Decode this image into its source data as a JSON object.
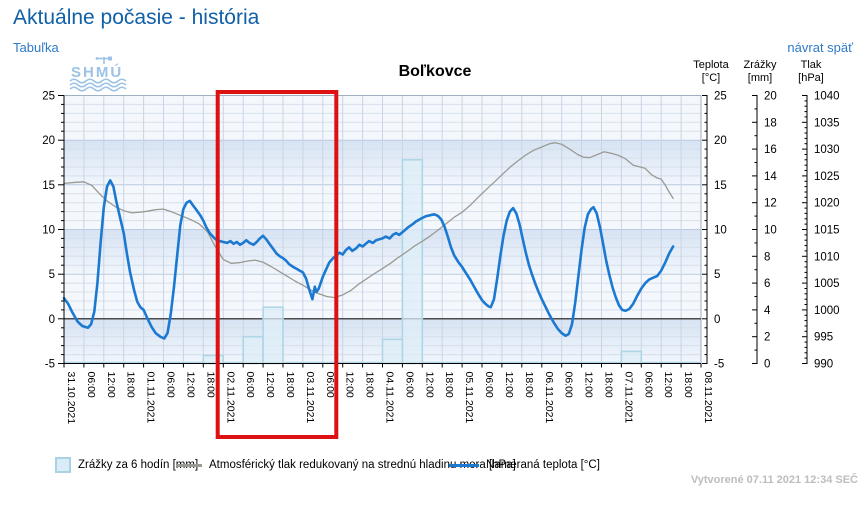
{
  "page": {
    "title": "Aktuálne počasie - história",
    "table_link": "Tabuľka",
    "back_link": "návrat späť",
    "created": "Vytvorené 07.11 2021 12:34 SEČ"
  },
  "logo": {
    "text": "SHMÚ"
  },
  "chart_data": {
    "type": "line",
    "title": "Boľkovce",
    "x_axis": {
      "tick_hours": 6,
      "tick_labels": [
        "31.10.2021",
        "06:00",
        "12:00",
        "18:00",
        "01.11.2021",
        "06:00",
        "12:00",
        "18:00",
        "02.11.2021",
        "06:00",
        "12:00",
        "18:00",
        "03.11.2021",
        "06:00",
        "12:00",
        "18:00",
        "04.11.2021",
        "06:00",
        "12:00",
        "18:00",
        "05.11.2021",
        "06:00",
        "12:00",
        "18:00",
        "06.11.2021",
        "06:00",
        "12:00",
        "18:00",
        "07.11.2021",
        "06:00",
        "12:00",
        "18:00",
        "08.11.2021"
      ]
    },
    "axes": {
      "teplota": {
        "label": "Teplota",
        "unit": "[°C]",
        "min": -5,
        "max": 25,
        "minor_step": 1,
        "label_step": 5,
        "tick_labels": [
          -5,
          0,
          5,
          10,
          15,
          20,
          25
        ]
      },
      "zrazky": {
        "label": "Zrážky",
        "unit": "[mm]",
        "min": 0,
        "max": 20,
        "minor_step": 1,
        "label_step": 2,
        "tick_labels": [
          0,
          2,
          4,
          6,
          8,
          10,
          12,
          14,
          16,
          18,
          20
        ]
      },
      "tlak": {
        "label": "Tlak",
        "unit": "[hPa]",
        "min": 990,
        "max": 1040,
        "minor_step": 1,
        "label_step": 5,
        "tick_labels": [
          990,
          995,
          1000,
          1005,
          1010,
          1015,
          1020,
          1025,
          1030,
          1035,
          1040
        ]
      }
    },
    "series": {
      "teplota": {
        "name": "Nameraná teplota [°C]",
        "color": "#1b79d2",
        "points": [
          [
            0,
            2.3
          ],
          [
            0.05,
            1.7
          ],
          [
            0.1,
            0.8
          ],
          [
            0.17,
            -0.3
          ],
          [
            0.23,
            -0.8
          ],
          [
            0.3,
            -1.0
          ],
          [
            0.34,
            -0.6
          ],
          [
            0.38,
            0.8
          ],
          [
            0.42,
            4.0
          ],
          [
            0.46,
            8.5
          ],
          [
            0.5,
            12.5
          ],
          [
            0.54,
            14.8
          ],
          [
            0.58,
            15.5
          ],
          [
            0.62,
            14.8
          ],
          [
            0.66,
            13.0
          ],
          [
            0.7,
            11.5
          ],
          [
            0.75,
            9.6
          ],
          [
            0.79,
            7.3
          ],
          [
            0.83,
            5.2
          ],
          [
            0.88,
            3.2
          ],
          [
            0.92,
            1.9
          ],
          [
            0.96,
            1.3
          ],
          [
            1.0,
            1.0
          ],
          [
            1.05,
            0.0
          ],
          [
            1.1,
            -0.9
          ],
          [
            1.15,
            -1.6
          ],
          [
            1.21,
            -2.0
          ],
          [
            1.26,
            -2.2
          ],
          [
            1.3,
            -1.6
          ],
          [
            1.34,
            0.5
          ],
          [
            1.38,
            3.5
          ],
          [
            1.42,
            7.0
          ],
          [
            1.46,
            10.5
          ],
          [
            1.5,
            12.3
          ],
          [
            1.54,
            13.0
          ],
          [
            1.58,
            13.2
          ],
          [
            1.62,
            12.7
          ],
          [
            1.67,
            12.1
          ],
          [
            1.71,
            11.6
          ],
          [
            1.75,
            11.0
          ],
          [
            1.79,
            10.2
          ],
          [
            1.83,
            9.6
          ],
          [
            1.88,
            9.1
          ],
          [
            1.92,
            8.8
          ],
          [
            1.96,
            8.7
          ],
          [
            2.0,
            8.6
          ],
          [
            2.05,
            8.5
          ],
          [
            2.09,
            8.7
          ],
          [
            2.13,
            8.4
          ],
          [
            2.17,
            8.6
          ],
          [
            2.21,
            8.3
          ],
          [
            2.25,
            8.5
          ],
          [
            2.29,
            8.8
          ],
          [
            2.33,
            8.5
          ],
          [
            2.38,
            8.3
          ],
          [
            2.42,
            8.6
          ],
          [
            2.46,
            9.0
          ],
          [
            2.5,
            9.3
          ],
          [
            2.54,
            8.9
          ],
          [
            2.58,
            8.4
          ],
          [
            2.63,
            7.8
          ],
          [
            2.67,
            7.3
          ],
          [
            2.71,
            7.0
          ],
          [
            2.75,
            6.8
          ],
          [
            2.79,
            6.5
          ],
          [
            2.83,
            6.1
          ],
          [
            2.88,
            5.8
          ],
          [
            2.92,
            5.6
          ],
          [
            2.96,
            5.4
          ],
          [
            3.0,
            5.2
          ],
          [
            3.04,
            4.5
          ],
          [
            3.08,
            3.3
          ],
          [
            3.12,
            2.2
          ],
          [
            3.15,
            3.6
          ],
          [
            3.17,
            3.0
          ],
          [
            3.2,
            3.4
          ],
          [
            3.25,
            4.7
          ],
          [
            3.29,
            5.5
          ],
          [
            3.33,
            6.3
          ],
          [
            3.38,
            6.8
          ],
          [
            3.42,
            7.1
          ],
          [
            3.46,
            7.4
          ],
          [
            3.5,
            7.2
          ],
          [
            3.54,
            7.7
          ],
          [
            3.58,
            8.0
          ],
          [
            3.62,
            7.6
          ],
          [
            3.67,
            7.9
          ],
          [
            3.71,
            8.3
          ],
          [
            3.75,
            8.1
          ],
          [
            3.79,
            8.4
          ],
          [
            3.83,
            8.7
          ],
          [
            3.88,
            8.5
          ],
          [
            3.92,
            8.8
          ],
          [
            3.96,
            8.9
          ],
          [
            4.0,
            9.0
          ],
          [
            4.04,
            9.2
          ],
          [
            4.09,
            9.0
          ],
          [
            4.13,
            9.4
          ],
          [
            4.17,
            9.6
          ],
          [
            4.21,
            9.4
          ],
          [
            4.25,
            9.7
          ],
          [
            4.29,
            10.0
          ],
          [
            4.33,
            10.3
          ],
          [
            4.38,
            10.6
          ],
          [
            4.42,
            10.9
          ],
          [
            4.46,
            11.1
          ],
          [
            4.5,
            11.3
          ],
          [
            4.55,
            11.5
          ],
          [
            4.6,
            11.6
          ],
          [
            4.65,
            11.7
          ],
          [
            4.7,
            11.5
          ],
          [
            4.74,
            11.1
          ],
          [
            4.78,
            10.3
          ],
          [
            4.82,
            9.2
          ],
          [
            4.86,
            8.0
          ],
          [
            4.9,
            7.1
          ],
          [
            4.95,
            6.4
          ],
          [
            5.0,
            5.8
          ],
          [
            5.05,
            5.1
          ],
          [
            5.1,
            4.4
          ],
          [
            5.15,
            3.6
          ],
          [
            5.2,
            2.8
          ],
          [
            5.25,
            2.1
          ],
          [
            5.29,
            1.7
          ],
          [
            5.33,
            1.4
          ],
          [
            5.36,
            1.3
          ],
          [
            5.4,
            2.2
          ],
          [
            5.44,
            4.5
          ],
          [
            5.48,
            7.0
          ],
          [
            5.52,
            9.3
          ],
          [
            5.56,
            11.0
          ],
          [
            5.6,
            12.0
          ],
          [
            5.64,
            12.4
          ],
          [
            5.68,
            11.8
          ],
          [
            5.72,
            10.6
          ],
          [
            5.76,
            9.0
          ],
          [
            5.8,
            7.4
          ],
          [
            5.84,
            6.0
          ],
          [
            5.88,
            4.9
          ],
          [
            5.92,
            3.9
          ],
          [
            5.96,
            3.0
          ],
          [
            6.0,
            2.2
          ],
          [
            6.05,
            1.3
          ],
          [
            6.1,
            0.4
          ],
          [
            6.15,
            -0.4
          ],
          [
            6.2,
            -1.1
          ],
          [
            6.25,
            -1.6
          ],
          [
            6.3,
            -1.9
          ],
          [
            6.34,
            -1.7
          ],
          [
            6.38,
            -0.6
          ],
          [
            6.42,
            1.8
          ],
          [
            6.46,
            4.8
          ],
          [
            6.5,
            7.8
          ],
          [
            6.54,
            10.2
          ],
          [
            6.58,
            11.7
          ],
          [
            6.62,
            12.3
          ],
          [
            6.65,
            12.5
          ],
          [
            6.69,
            11.8
          ],
          [
            6.73,
            10.3
          ],
          [
            6.77,
            8.4
          ],
          [
            6.81,
            6.5
          ],
          [
            6.85,
            4.9
          ],
          [
            6.89,
            3.5
          ],
          [
            6.93,
            2.4
          ],
          [
            6.97,
            1.5
          ],
          [
            7.01,
            1.0
          ],
          [
            7.05,
            0.9
          ],
          [
            7.1,
            1.1
          ],
          [
            7.15,
            1.7
          ],
          [
            7.2,
            2.6
          ],
          [
            7.25,
            3.4
          ],
          [
            7.3,
            4.0
          ],
          [
            7.35,
            4.4
          ],
          [
            7.4,
            4.6
          ],
          [
            7.45,
            4.8
          ],
          [
            7.5,
            5.4
          ],
          [
            7.55,
            6.3
          ],
          [
            7.6,
            7.3
          ],
          [
            7.65,
            8.1
          ]
        ]
      },
      "tlak": {
        "name": "Atmosférický tlak redukovaný na strednú hladinu mora [hPa]",
        "color": "#9a9a94",
        "points": [
          [
            0,
            1023.6
          ],
          [
            0.15,
            1023.8
          ],
          [
            0.25,
            1023.9
          ],
          [
            0.35,
            1023.2
          ],
          [
            0.45,
            1021.6
          ],
          [
            0.55,
            1020.2
          ],
          [
            0.65,
            1019.2
          ],
          [
            0.75,
            1018.5
          ],
          [
            0.85,
            1018.1
          ],
          [
            1.0,
            1018.3
          ],
          [
            1.15,
            1018.7
          ],
          [
            1.25,
            1018.8
          ],
          [
            1.35,
            1018.3
          ],
          [
            1.5,
            1017.4
          ],
          [
            1.6,
            1016.8
          ],
          [
            1.7,
            1016.0
          ],
          [
            1.8,
            1014.6
          ],
          [
            1.9,
            1011.8
          ],
          [
            2.0,
            1009.4
          ],
          [
            2.1,
            1008.7
          ],
          [
            2.2,
            1008.8
          ],
          [
            2.3,
            1009.1
          ],
          [
            2.4,
            1009.3
          ],
          [
            2.5,
            1008.9
          ],
          [
            2.6,
            1008.1
          ],
          [
            2.7,
            1007.2
          ],
          [
            2.8,
            1006.3
          ],
          [
            2.9,
            1005.4
          ],
          [
            3.0,
            1004.6
          ],
          [
            3.1,
            1003.7
          ],
          [
            3.2,
            1003.0
          ],
          [
            3.3,
            1002.5
          ],
          [
            3.4,
            1002.3
          ],
          [
            3.5,
            1002.8
          ],
          [
            3.6,
            1003.6
          ],
          [
            3.7,
            1004.8
          ],
          [
            3.8,
            1005.8
          ],
          [
            3.9,
            1006.8
          ],
          [
            4.0,
            1007.7
          ],
          [
            4.1,
            1008.7
          ],
          [
            4.2,
            1009.8
          ],
          [
            4.3,
            1010.8
          ],
          [
            4.4,
            1011.9
          ],
          [
            4.5,
            1012.8
          ],
          [
            4.6,
            1013.8
          ],
          [
            4.7,
            1014.9
          ],
          [
            4.8,
            1016.1
          ],
          [
            4.9,
            1017.3
          ],
          [
            5.0,
            1018.2
          ],
          [
            5.1,
            1019.5
          ],
          [
            5.2,
            1021.0
          ],
          [
            5.3,
            1022.4
          ],
          [
            5.4,
            1023.8
          ],
          [
            5.5,
            1025.2
          ],
          [
            5.6,
            1026.6
          ],
          [
            5.7,
            1027.8
          ],
          [
            5.8,
            1028.9
          ],
          [
            5.9,
            1029.8
          ],
          [
            6.0,
            1030.4
          ],
          [
            6.1,
            1031.0
          ],
          [
            6.17,
            1031.2
          ],
          [
            6.25,
            1030.9
          ],
          [
            6.35,
            1030.0
          ],
          [
            6.45,
            1029.0
          ],
          [
            6.52,
            1028.5
          ],
          [
            6.6,
            1028.4
          ],
          [
            6.7,
            1029.0
          ],
          [
            6.78,
            1029.5
          ],
          [
            6.85,
            1029.3
          ],
          [
            6.95,
            1028.9
          ],
          [
            7.05,
            1028.2
          ],
          [
            7.15,
            1027.0
          ],
          [
            7.25,
            1026.6
          ],
          [
            7.3,
            1026.4
          ],
          [
            7.38,
            1025.2
          ],
          [
            7.45,
            1024.6
          ],
          [
            7.5,
            1024.4
          ],
          [
            7.55,
            1023.3
          ],
          [
            7.6,
            1022.0
          ],
          [
            7.65,
            1020.8
          ]
        ]
      },
      "zrazky": {
        "name": "Zrážky za 6 hodín [mm]",
        "color": "#aed6e6",
        "bars": [
          [
            1.75,
            2.0,
            0.6
          ],
          [
            2.25,
            2.5,
            2.0
          ],
          [
            2.5,
            2.75,
            4.2
          ],
          [
            4.0,
            4.25,
            1.8
          ],
          [
            4.25,
            4.5,
            15.2
          ],
          [
            7.0,
            7.25,
            0.9
          ]
        ]
      }
    },
    "highlight_box": {
      "start_day": 1.93,
      "end_day": 3.42,
      "color": "#dd1111"
    },
    "layout_hints": {
      "grid": true,
      "bands": "alternating 5°C horizontal bands",
      "legend_position": "bottom"
    }
  }
}
